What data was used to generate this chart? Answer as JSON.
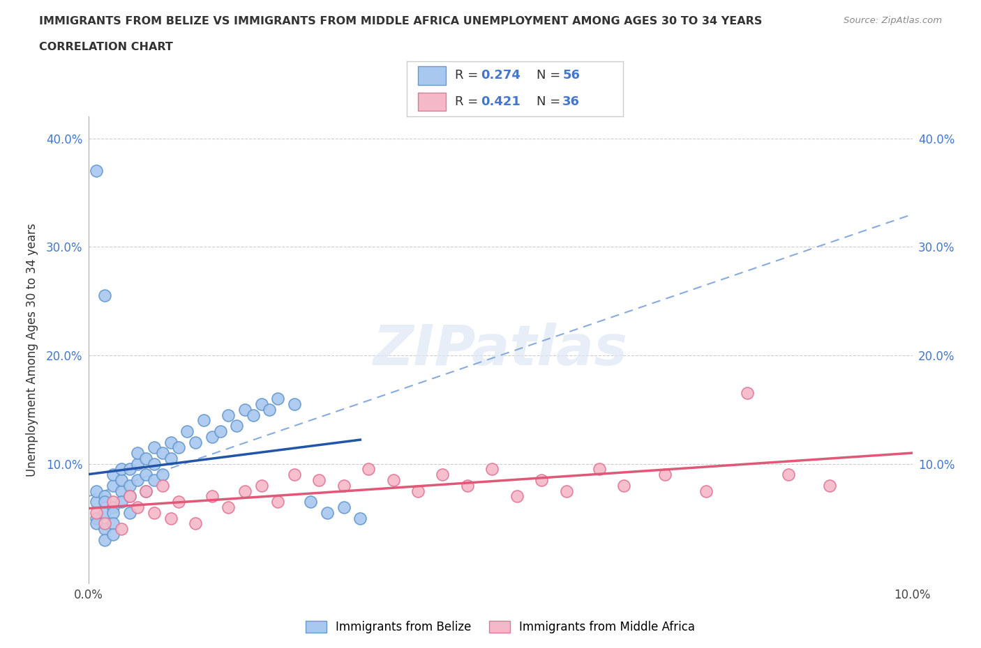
{
  "title_line1": "IMMIGRANTS FROM BELIZE VS IMMIGRANTS FROM MIDDLE AFRICA UNEMPLOYMENT AMONG AGES 30 TO 34 YEARS",
  "title_line2": "CORRELATION CHART",
  "source": "Source: ZipAtlas.com",
  "ylabel": "Unemployment Among Ages 30 to 34 years",
  "xlim": [
    0.0,
    0.1
  ],
  "ylim": [
    -0.01,
    0.42
  ],
  "x_ticks": [
    0.0,
    0.02,
    0.04,
    0.06,
    0.08,
    0.1
  ],
  "x_tick_labels": [
    "0.0%",
    "",
    "",
    "",
    "",
    "10.0%"
  ],
  "y_ticks": [
    0.0,
    0.1,
    0.2,
    0.3,
    0.4
  ],
  "y_tick_labels": [
    "",
    "10.0%",
    "20.0%",
    "30.0%",
    "40.0%"
  ],
  "belize_color": "#a8c8f0",
  "belize_edge_color": "#6699cc",
  "middle_africa_color": "#f5b8c8",
  "middle_africa_edge_color": "#e07898",
  "belize_line_color": "#2255aa",
  "middle_africa_line_color": "#e05878",
  "dashed_line_color": "#88aadd",
  "R_belize": 0.274,
  "N_belize": 56,
  "R_middle_africa": 0.421,
  "N_middle_africa": 36,
  "watermark": "ZIPatlas",
  "legend_label_belize": "Immigrants from Belize",
  "legend_label_middle_africa": "Immigrants from Middle Africa",
  "belize_x": [
    0.001,
    0.001,
    0.001,
    0.001,
    0.002,
    0.002,
    0.002,
    0.002,
    0.002,
    0.003,
    0.003,
    0.003,
    0.003,
    0.003,
    0.003,
    0.004,
    0.004,
    0.004,
    0.004,
    0.005,
    0.005,
    0.005,
    0.005,
    0.006,
    0.006,
    0.006,
    0.007,
    0.007,
    0.007,
    0.008,
    0.008,
    0.008,
    0.009,
    0.009,
    0.01,
    0.01,
    0.011,
    0.012,
    0.013,
    0.014,
    0.015,
    0.016,
    0.017,
    0.018,
    0.019,
    0.02,
    0.021,
    0.022,
    0.023,
    0.025,
    0.027,
    0.029,
    0.031,
    0.033,
    0.001,
    0.002
  ],
  "belize_y": [
    0.065,
    0.05,
    0.045,
    0.075,
    0.055,
    0.07,
    0.04,
    0.03,
    0.065,
    0.06,
    0.055,
    0.08,
    0.09,
    0.045,
    0.035,
    0.075,
    0.085,
    0.095,
    0.065,
    0.08,
    0.055,
    0.095,
    0.07,
    0.085,
    0.1,
    0.11,
    0.09,
    0.105,
    0.075,
    0.1,
    0.115,
    0.085,
    0.11,
    0.09,
    0.105,
    0.12,
    0.115,
    0.13,
    0.12,
    0.14,
    0.125,
    0.13,
    0.145,
    0.135,
    0.15,
    0.145,
    0.155,
    0.15,
    0.16,
    0.155,
    0.065,
    0.055,
    0.06,
    0.05,
    0.37,
    0.255
  ],
  "middle_africa_x": [
    0.001,
    0.002,
    0.003,
    0.004,
    0.005,
    0.006,
    0.007,
    0.008,
    0.009,
    0.01,
    0.011,
    0.013,
    0.015,
    0.017,
    0.019,
    0.021,
    0.023,
    0.025,
    0.028,
    0.031,
    0.034,
    0.037,
    0.04,
    0.043,
    0.046,
    0.049,
    0.052,
    0.055,
    0.058,
    0.062,
    0.065,
    0.07,
    0.075,
    0.08,
    0.085,
    0.09
  ],
  "middle_africa_y": [
    0.055,
    0.045,
    0.065,
    0.04,
    0.07,
    0.06,
    0.075,
    0.055,
    0.08,
    0.05,
    0.065,
    0.045,
    0.07,
    0.06,
    0.075,
    0.08,
    0.065,
    0.09,
    0.085,
    0.08,
    0.095,
    0.085,
    0.075,
    0.09,
    0.08,
    0.095,
    0.07,
    0.085,
    0.075,
    0.095,
    0.08,
    0.09,
    0.075,
    0.165,
    0.09,
    0.08
  ],
  "background_color": "#ffffff",
  "grid_color": "#cccccc"
}
